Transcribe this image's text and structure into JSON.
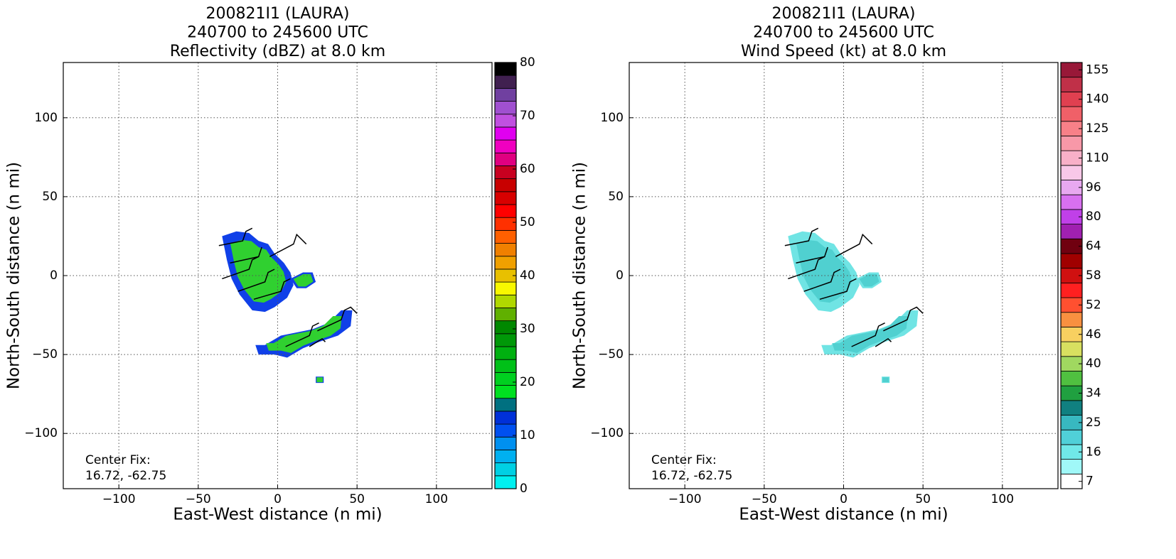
{
  "chart_data": [
    {
      "type": "heatmap",
      "title": [
        "200821I1 (LAURA)",
        "240700 to 245600 UTC",
        "Reflectivity (dBZ) at 8.0 km"
      ],
      "xlabel": "East-West distance (n mi)",
      "ylabel": "North-South distance (n mi)",
      "xlim": [
        -135,
        135
      ],
      "ylim": [
        -135,
        135
      ],
      "xticks": [
        {
          "value": -100,
          "label": "−100"
        },
        {
          "value": -50,
          "label": "−50"
        },
        0,
        50,
        100
      ],
      "yticks": [
        {
          "value": -100,
          "label": "−100"
        },
        {
          "value": -50,
          "label": "−50"
        },
        0,
        50,
        100
      ],
      "grid": true,
      "annotation": [
        "Center Fix:",
        "16.72, -62.75"
      ],
      "colorbar": {
        "scale": "linear",
        "clim": [
          0,
          80
        ],
        "ticks": [
          0,
          10,
          20,
          30,
          40,
          50,
          60,
          70,
          80
        ],
        "colors": [
          "#00f0f0",
          "#00d0e4",
          "#00b0f0",
          "#0090f0",
          "#0050f0",
          "#0030d8",
          "#007080",
          "#00e020",
          "#00d020",
          "#00c018",
          "#00b010",
          "#009808",
          "#008800",
          "#60b000",
          "#b0d800",
          "#f8f800",
          "#e8c000",
          "#f0a000",
          "#f08000",
          "#ff6000",
          "#ff3000",
          "#ff0000",
          "#d80000",
          "#c80000",
          "#c80020",
          "#e00080",
          "#f000c0",
          "#e000f0",
          "#c050e0",
          "#a050d0",
          "#7040a0",
          "#402050",
          "#000000"
        ]
      }
    },
    {
      "type": "heatmap",
      "title": [
        "200821I1 (LAURA)",
        "240700 to 245600 UTC",
        "Wind Speed (kt) at 8.0 km"
      ],
      "xlabel": "East-West distance (n mi)",
      "ylabel": "North-South distance (n mi)",
      "xlim": [
        -135,
        135
      ],
      "ylim": [
        -135,
        135
      ],
      "xticks": [
        {
          "value": -100,
          "label": "−100"
        },
        {
          "value": -50,
          "label": "−50"
        },
        0,
        50,
        100
      ],
      "yticks": [
        {
          "value": -100,
          "label": "−100"
        },
        {
          "value": -50,
          "label": "−50"
        },
        0,
        50,
        100
      ],
      "grid": true,
      "annotation": [
        "Center Fix:",
        "16.72, -62.75"
      ],
      "colorbar": {
        "scale": "categorical",
        "ticks": [
          7,
          16,
          25,
          34,
          40,
          46,
          52,
          58,
          64,
          80,
          96,
          110,
          125,
          140,
          155
        ],
        "colors": [
          "#ffffff",
          "#a0f8f8",
          "#70e8e8",
          "#50d0d8",
          "#38b8c0",
          "#108080",
          "#20a040",
          "#50c040",
          "#a0d860",
          "#d8e060",
          "#f8d060",
          "#f89040",
          "#ff5030",
          "#ff2020",
          "#d01010",
          "#a00000",
          "#700010",
          "#a020b0",
          "#c040e8",
          "#d870f0",
          "#e8a8f0",
          "#f8c8e8",
          "#f8b0c8",
          "#f898a8",
          "#f88088",
          "#f06068",
          "#e04050",
          "#c03048",
          "#981838"
        ]
      }
    }
  ]
}
